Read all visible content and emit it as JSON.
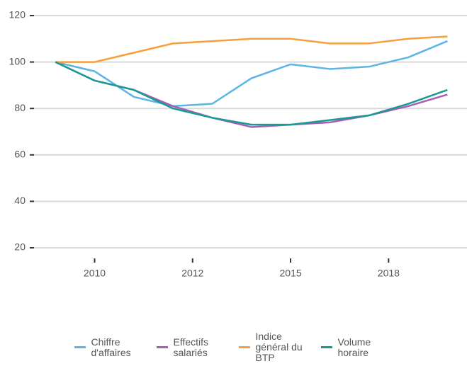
{
  "chart_data": {
    "type": "line",
    "x": [
      2009,
      2010,
      2011,
      2012,
      2013,
      2014,
      2015,
      2016,
      2017,
      2018,
      2019
    ],
    "series": [
      {
        "name": "Chiffre d'affaires",
        "color": "#5ab4e5",
        "values": [
          100,
          96,
          85,
          81,
          82,
          93,
          99,
          97,
          98,
          102,
          109
        ]
      },
      {
        "name": "Effectifs salariés",
        "color": "#a65fb5",
        "values": [
          100,
          92,
          88,
          81,
          76,
          72,
          73,
          74,
          77,
          81,
          86
        ]
      },
      {
        "name": "Indice général du BTP",
        "color": "#f5a03c",
        "values": [
          100,
          100,
          104,
          108,
          109,
          110,
          110,
          108,
          108,
          110,
          111
        ]
      },
      {
        "name": "Volume horaire",
        "color": "#1a9994",
        "values": [
          100,
          92,
          88,
          80,
          76,
          73,
          73,
          75,
          77,
          82,
          88
        ]
      }
    ],
    "xlim": [
      2008.4,
      2019.5
    ],
    "xticks": [
      2010,
      {
        "value": 2012.5,
        "label": "2012"
      },
      2015,
      {
        "value": 2017.5,
        "label": "2018"
      }
    ],
    "ylim": [
      20,
      120
    ],
    "yticks": [
      20,
      40,
      60,
      80,
      100,
      120
    ],
    "grid": true,
    "legend": "bottom"
  }
}
